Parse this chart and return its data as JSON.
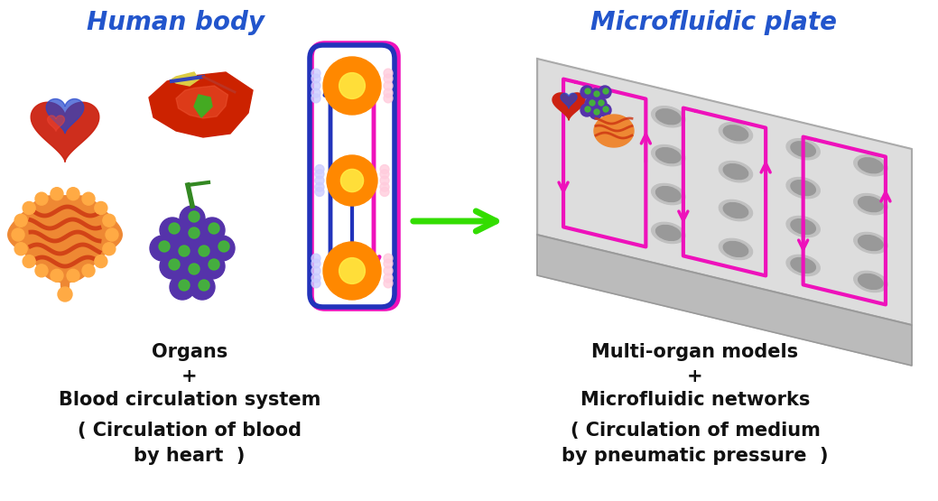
{
  "bg_color": "#ffffff",
  "title_left": "Human body",
  "title_right": "Microfluidic plate",
  "title_color": "#2255cc",
  "title_fontsize": 19,
  "text_left_line1": "Organs",
  "text_left_line2": "+",
  "text_left_line3": "Blood circulation system",
  "text_left_line4": "( Circulation of blood",
  "text_left_line5": "by heart  )",
  "text_right_line1": "Multi-organ models",
  "text_right_line2": "+",
  "text_right_line3": "Microfluidic networks",
  "text_right_line4": "( Circulation of medium",
  "text_right_line5": "by pneumatic pressure  )",
  "body_text_color": "#111111",
  "body_text_fontsize": 14,
  "arrow_green_color": "#33dd00",
  "arrow_blue_color": "#2233bb",
  "arrow_pink_color": "#ee11bb",
  "figsize": [
    10.39,
    5.55
  ],
  "dpi": 100
}
